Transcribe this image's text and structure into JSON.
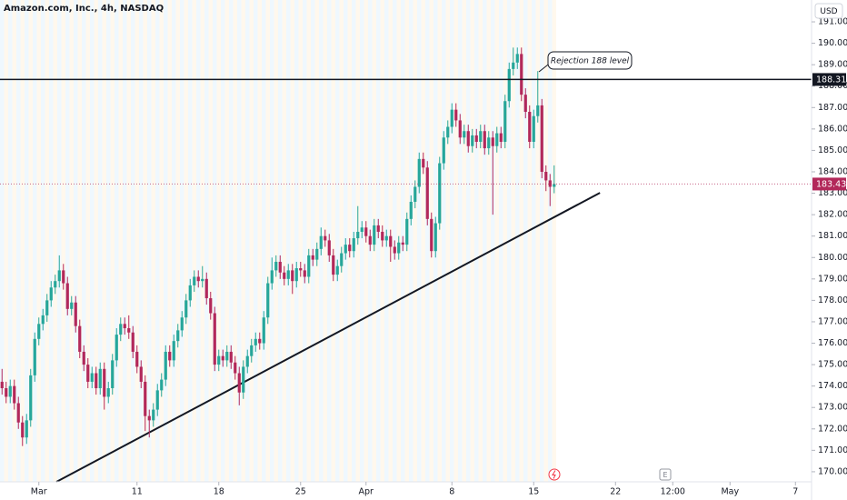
{
  "chart_data": {
    "type": "candlestick",
    "title": "Amazon.com, Inc., 4h, NASDAQ",
    "currency": "USD",
    "x": [
      0,
      1,
      2,
      3,
      4,
      5,
      6,
      7,
      8,
      9,
      10,
      11,
      12,
      13,
      14,
      15,
      16,
      17,
      18,
      19,
      20,
      21,
      22,
      23,
      24,
      25,
      26,
      27,
      28,
      29,
      30,
      31,
      32,
      33,
      34,
      35,
      36,
      37,
      38,
      39,
      40,
      41,
      42,
      43,
      44,
      45,
      46,
      47,
      48,
      49,
      50,
      51,
      52,
      53,
      54,
      55,
      56,
      57,
      58,
      59,
      60,
      61,
      62,
      63,
      64,
      65,
      66,
      67,
      68,
      69,
      70,
      71,
      72,
      73,
      74,
      75,
      76,
      77,
      78,
      79,
      80,
      81,
      82,
      83,
      84,
      85,
      86,
      87,
      88,
      89,
      90,
      91,
      92,
      93,
      94,
      95,
      96,
      97,
      98,
      99,
      100,
      101,
      102,
      103,
      104,
      105,
      106,
      107,
      108,
      109,
      110,
      111,
      112,
      113,
      114,
      115,
      116,
      117,
      118,
      119,
      120,
      121,
      122,
      123,
      124,
      125,
      126,
      127,
      128,
      129,
      130,
      131,
      132,
      133,
      134,
      135
    ],
    "open": [
      174.2,
      173.9,
      173.5,
      174.0,
      173.2,
      172.3,
      171.6,
      172.4,
      174.5,
      176.2,
      176.9,
      177.3,
      178.0,
      178.6,
      178.9,
      179.4,
      178.8,
      177.6,
      177.9,
      176.8,
      175.6,
      175.0,
      174.2,
      174.6,
      173.9,
      174.8,
      173.5,
      173.9,
      175.2,
      176.4,
      176.9,
      176.7,
      176.5,
      175.6,
      174.9,
      174.2,
      172.6,
      172.4,
      172.9,
      173.8,
      174.3,
      175.6,
      175.2,
      176.1,
      176.6,
      177.2,
      178.0,
      178.7,
      179.1,
      178.9,
      179.0,
      178.1,
      177.4,
      175.0,
      175.4,
      175.2,
      175.6,
      175.1,
      174.6,
      173.7,
      174.9,
      175.4,
      175.9,
      176.2,
      176.0,
      177.2,
      178.8,
      179.4,
      179.8,
      179.3,
      179.0,
      179.4,
      178.9,
      179.5,
      179.4,
      179.1,
      180.1,
      179.9,
      180.4,
      181.0,
      180.8,
      180.1,
      179.2,
      179.6,
      180.2,
      180.6,
      180.3,
      180.9,
      181.2,
      181.4,
      181.0,
      180.6,
      181.5,
      181.2,
      180.8,
      181.0,
      180.5,
      180.2,
      180.7,
      180.6,
      181.8,
      182.6,
      183.3,
      184.6,
      184.2,
      181.8,
      180.3,
      181.6,
      184.4,
      185.6,
      186.1,
      186.9,
      186.4,
      185.6,
      185.9,
      185.2,
      185.7,
      185.4,
      185.9,
      185.1,
      185.6,
      185.2,
      185.8,
      185.4,
      187.3,
      188.8,
      189.1,
      189.5,
      187.6,
      186.8,
      185.4,
      186.6,
      187.1,
      184.0,
      183.6,
      183.3
    ],
    "high": [
      174.8,
      174.2,
      174.3,
      174.3,
      173.5,
      172.6,
      172.7,
      174.8,
      176.5,
      177.2,
      177.6,
      178.3,
      178.9,
      179.2,
      180.1,
      179.7,
      179.1,
      178.2,
      178.2,
      177.1,
      175.9,
      175.3,
      174.9,
      174.9,
      175.1,
      175.1,
      174.2,
      175.5,
      176.7,
      177.2,
      177.2,
      177.3,
      176.8,
      175.9,
      175.2,
      174.5,
      172.9,
      173.2,
      174.1,
      174.6,
      175.9,
      175.9,
      176.4,
      176.9,
      177.5,
      178.3,
      179.0,
      179.4,
      179.4,
      179.6,
      179.3,
      178.4,
      177.7,
      175.7,
      175.7,
      175.9,
      175.9,
      175.4,
      174.9,
      175.2,
      175.7,
      176.2,
      176.5,
      176.5,
      177.5,
      179.1,
      180.0,
      180.1,
      180.1,
      179.6,
      179.7,
      179.7,
      179.8,
      179.8,
      179.7,
      180.4,
      180.4,
      180.7,
      181.4,
      181.3,
      181.1,
      180.4,
      179.9,
      180.5,
      180.9,
      180.9,
      181.2,
      182.4,
      181.7,
      181.7,
      181.3,
      181.8,
      181.8,
      181.5,
      181.3,
      181.3,
      180.8,
      181.0,
      181.0,
      182.1,
      182.9,
      183.6,
      184.9,
      184.9,
      184.5,
      182.1,
      181.9,
      184.7,
      185.9,
      186.4,
      187.2,
      187.2,
      186.7,
      186.2,
      186.2,
      186.0,
      186.0,
      186.2,
      186.2,
      185.9,
      185.9,
      186.1,
      186.1,
      187.6,
      189.1,
      189.8,
      189.8,
      189.8,
      187.9,
      187.1,
      186.9,
      188.7,
      187.4,
      184.3,
      183.9,
      184.3
    ],
    "low": [
      173.6,
      173.2,
      173.2,
      172.9,
      172.0,
      171.2,
      171.3,
      172.1,
      174.2,
      175.9,
      176.6,
      177.0,
      177.7,
      178.3,
      178.6,
      178.5,
      177.3,
      177.3,
      176.5,
      175.3,
      174.7,
      173.9,
      173.9,
      173.6,
      173.6,
      172.9,
      173.2,
      173.6,
      174.9,
      176.1,
      176.4,
      176.2,
      175.3,
      174.6,
      173.9,
      171.9,
      171.6,
      172.1,
      172.6,
      173.5,
      174.0,
      174.9,
      174.9,
      175.8,
      176.3,
      176.9,
      177.7,
      178.4,
      178.6,
      178.6,
      177.8,
      177.1,
      174.7,
      174.7,
      174.9,
      174.9,
      174.8,
      174.3,
      173.1,
      173.4,
      174.6,
      175.1,
      175.6,
      175.7,
      175.7,
      176.9,
      178.5,
      179.1,
      179.0,
      178.7,
      178.7,
      178.3,
      178.6,
      179.1,
      178.8,
      178.8,
      179.6,
      179.6,
      180.1,
      180.5,
      179.8,
      178.9,
      178.9,
      179.3,
      179.9,
      180.0,
      180.0,
      180.6,
      180.9,
      180.7,
      180.3,
      180.3,
      180.9,
      180.5,
      180.5,
      179.8,
      179.9,
      179.9,
      180.3,
      180.3,
      181.5,
      182.3,
      183.0,
      183.9,
      181.5,
      180.0,
      180.0,
      181.3,
      184.1,
      185.3,
      185.8,
      186.1,
      185.3,
      185.3,
      184.9,
      184.9,
      185.1,
      185.1,
      184.8,
      184.8,
      182.0,
      184.9,
      185.1,
      185.1,
      187.0,
      188.5,
      188.8,
      187.3,
      186.5,
      185.1,
      185.1,
      186.3,
      183.7,
      183.1,
      182.4,
      183.0
    ],
    "close": [
      173.9,
      173.5,
      174.0,
      173.2,
      172.3,
      171.6,
      172.4,
      174.5,
      176.2,
      176.9,
      177.3,
      178.0,
      178.6,
      178.9,
      179.4,
      178.8,
      177.6,
      177.9,
      176.8,
      175.6,
      175.0,
      174.2,
      174.6,
      173.9,
      174.8,
      173.5,
      173.9,
      175.2,
      176.4,
      176.9,
      176.7,
      176.5,
      175.6,
      174.9,
      174.2,
      172.6,
      172.4,
      172.9,
      173.8,
      174.3,
      175.6,
      175.2,
      176.1,
      176.6,
      177.2,
      178.0,
      178.7,
      179.1,
      178.9,
      179.0,
      178.1,
      177.4,
      175.0,
      175.4,
      175.2,
      175.6,
      175.1,
      174.6,
      173.7,
      174.9,
      175.4,
      175.9,
      176.2,
      176.0,
      177.2,
      178.8,
      179.4,
      179.8,
      179.3,
      179.0,
      179.4,
      178.9,
      179.5,
      179.4,
      179.1,
      180.1,
      179.9,
      180.4,
      181.0,
      180.8,
      180.1,
      179.2,
      179.6,
      180.2,
      180.6,
      180.3,
      180.9,
      181.2,
      181.4,
      181.0,
      180.6,
      181.5,
      181.2,
      180.8,
      181.0,
      180.5,
      180.2,
      180.7,
      180.6,
      181.8,
      182.6,
      183.3,
      184.6,
      184.2,
      181.8,
      180.3,
      181.6,
      184.4,
      185.6,
      186.1,
      186.9,
      186.4,
      185.6,
      185.9,
      185.2,
      185.7,
      185.4,
      185.9,
      185.1,
      185.6,
      185.2,
      185.8,
      185.4,
      187.3,
      188.8,
      189.1,
      189.5,
      187.6,
      186.8,
      185.4,
      186.6,
      187.1,
      184.0,
      183.6,
      183.3,
      183.43
    ],
    "up_color": "#26a69a",
    "down_color": "#b2285a",
    "xlim": [
      -0.5,
      197.94
    ],
    "xticks": [
      {
        "value": 9,
        "label": "Mar"
      },
      {
        "value": 33,
        "label": "11"
      },
      {
        "value": 53,
        "label": "18"
      },
      {
        "value": 73,
        "label": "25"
      },
      {
        "value": 89,
        "label": "Apr"
      },
      {
        "value": 110,
        "label": "8"
      },
      {
        "value": 130,
        "label": "15"
      },
      {
        "value": 150,
        "label": "22"
      },
      {
        "value": 164,
        "label": "12:00"
      },
      {
        "value": 178,
        "label": "May"
      },
      {
        "value": 194,
        "label": "7"
      }
    ],
    "ylim": [
      169.53,
      192.02
    ],
    "yticks": [
      {
        "value": 170,
        "label": "170.00"
      },
      {
        "value": 171,
        "label": "171.00"
      },
      {
        "value": 172,
        "label": "172.00"
      },
      {
        "value": 173,
        "label": "173.00"
      },
      {
        "value": 174,
        "label": "174.00"
      },
      {
        "value": 175,
        "label": "175.00"
      },
      {
        "value": 176,
        "label": "176.00"
      },
      {
        "value": 177,
        "label": "177.00"
      },
      {
        "value": 178,
        "label": "178.00"
      },
      {
        "value": 179,
        "label": "179.00"
      },
      {
        "value": 180,
        "label": "180.00"
      },
      {
        "value": 181,
        "label": "181.00"
      },
      {
        "value": 182,
        "label": "182.00"
      },
      {
        "value": 183,
        "label": "183.00"
      },
      {
        "value": 184,
        "label": "184.00"
      },
      {
        "value": 185,
        "label": "185.00"
      },
      {
        "value": 186,
        "label": "186.00"
      },
      {
        "value": 187,
        "label": "187.00"
      },
      {
        "value": 188,
        "label": "188.00"
      },
      {
        "value": 189,
        "label": "189.00"
      },
      {
        "value": 190,
        "label": "190.00"
      },
      {
        "value": 191,
        "label": "191.00"
      }
    ],
    "horizontal_line": 188.31,
    "last_price": 183.43,
    "trendline": {
      "x": [
        13.3,
        146.2
      ],
      "y": [
        169.53,
        183.02
      ]
    },
    "annotation": "Rejection 188 level",
    "earnings_icon": "E"
  }
}
